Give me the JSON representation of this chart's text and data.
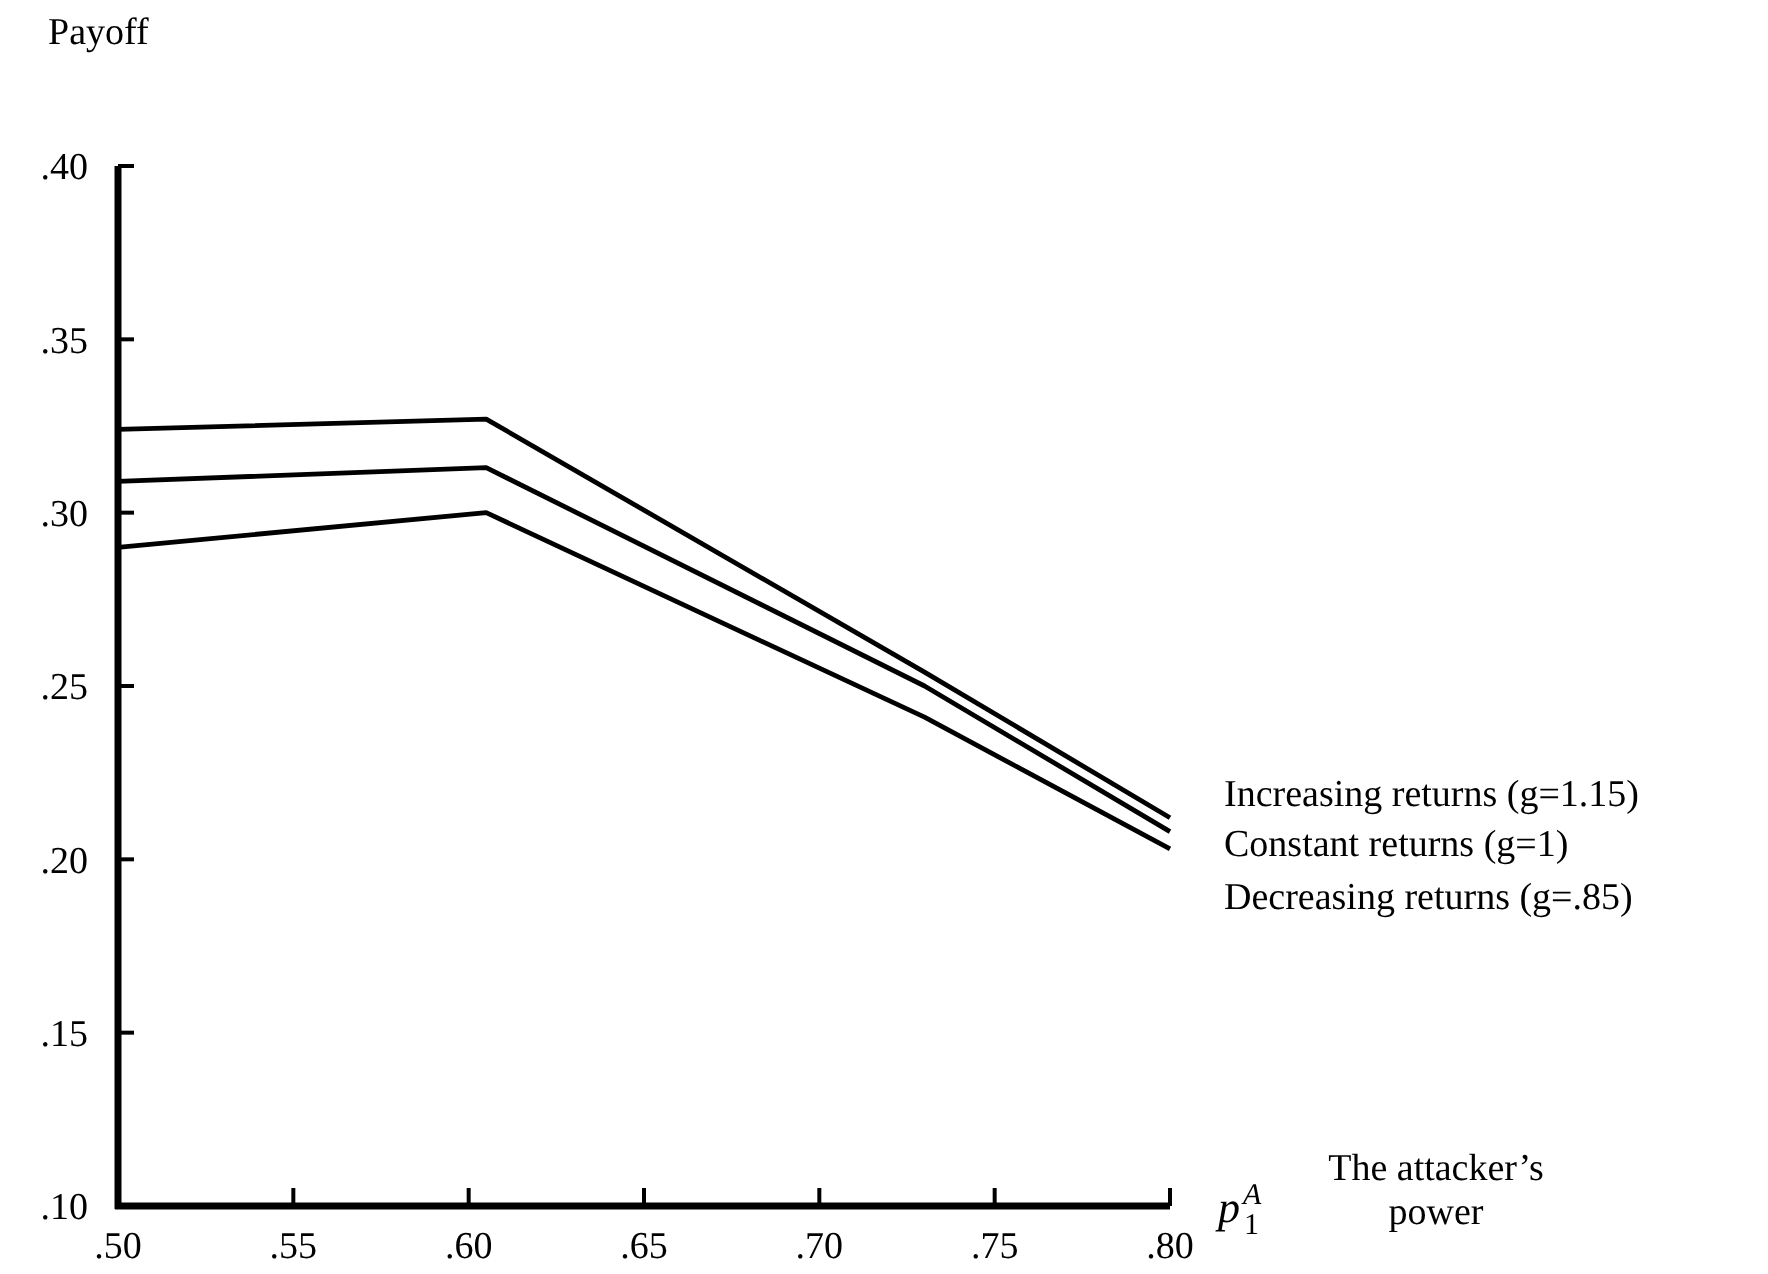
{
  "chart_data": {
    "type": "line",
    "ylabel": "Payoff",
    "xlabel": "p$_{1}$$^{A}$ The attacker’s power",
    "xlim": [
      0.5,
      0.8
    ],
    "ylim": [
      0.1,
      0.4
    ],
    "xticks": [
      {
        "value": 0.5,
        "label": ".50"
      },
      {
        "value": 0.55,
        "label": ".55"
      },
      {
        "value": 0.6,
        "label": ".60"
      },
      {
        "value": 0.65,
        "label": ".65"
      },
      {
        "value": 0.7,
        "label": ".70"
      },
      {
        "value": 0.75,
        "label": ".75"
      },
      {
        "value": 0.8,
        "label": ".80"
      }
    ],
    "yticks": [
      {
        "value": 0.1,
        "label": ".10"
      },
      {
        "value": 0.15,
        "label": ".15"
      },
      {
        "value": 0.2,
        "label": ".20"
      },
      {
        "value": 0.25,
        "label": ".25"
      },
      {
        "value": 0.3,
        "label": ".30"
      },
      {
        "value": 0.35,
        "label": ".35"
      },
      {
        "value": 0.4,
        "label": ".40"
      }
    ],
    "grid": false,
    "legend": false,
    "marker": "none",
    "line_style": "solid",
    "series": [
      {
        "name": "Increasing returns (g=1.15)",
        "color": "#000000",
        "x": [
          0.5,
          0.605,
          0.73,
          0.8
        ],
        "values": [
          0.324,
          0.327,
          0.254,
          0.212
        ]
      },
      {
        "name": "Constant returns (g=1)",
        "color": "#000000",
        "x": [
          0.5,
          0.605,
          0.73,
          0.8
        ],
        "values": [
          0.309,
          0.313,
          0.25,
          0.208
        ]
      },
      {
        "name": "Decreasing returns (g=.85)",
        "color": "#000000",
        "x": [
          0.5,
          0.605,
          0.73,
          0.8
        ],
        "values": [
          0.29,
          0.3,
          0.241,
          0.203
        ]
      }
    ]
  }
}
